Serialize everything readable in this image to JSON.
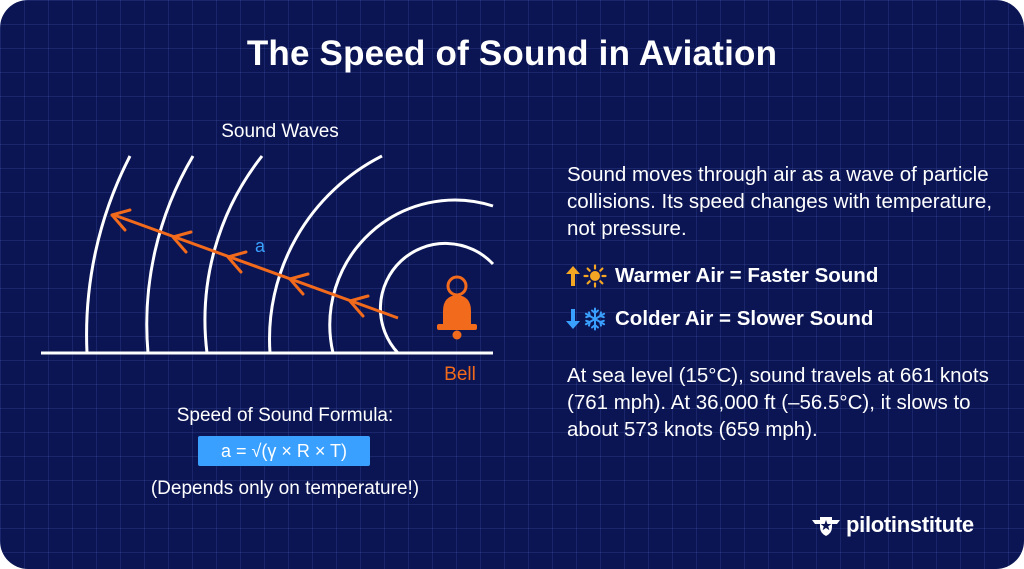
{
  "title": "The Speed of Sound in Aviation",
  "diagram": {
    "waves_label": "Sound Waves",
    "speed_symbol": "a",
    "source_label": "Bell",
    "colors": {
      "waves": "#ffffff",
      "arrow": "#f26a1b",
      "bell": "#f26a1b",
      "symbol": "#3aa0ff"
    },
    "icons": {
      "source": "bell-icon",
      "propagation": "arrow-icon"
    }
  },
  "formula": {
    "label": "Speed of Sound Formula:",
    "expression": "a = √(γ × R × T)",
    "note": "(Depends only on temperature!)",
    "box_color": "#3aa0ff"
  },
  "description": "Sound moves through air as a wave of particle collisions. Its speed changes with temperature, not pressure.",
  "rules": {
    "warm": {
      "text": "Warmer Air = Faster Sound",
      "arrow_icon": "arrow-up-icon",
      "symbol_icon": "sun-icon",
      "color": "#f5a623"
    },
    "cold": {
      "text": "Colder Air = Slower Sound",
      "arrow_icon": "arrow-down-icon",
      "symbol_icon": "snowflake-icon",
      "color": "#3aa0ff"
    }
  },
  "facts": "At sea level (15°C), sound travels at 661 knots (761 mph). At 36,000 ft (–56.5°C), it slows to about 573 knots (659 mph).",
  "brand": {
    "name": "pilotinstitute",
    "icon": "pilot-wings-star-icon"
  },
  "background_color": "#0b1553"
}
